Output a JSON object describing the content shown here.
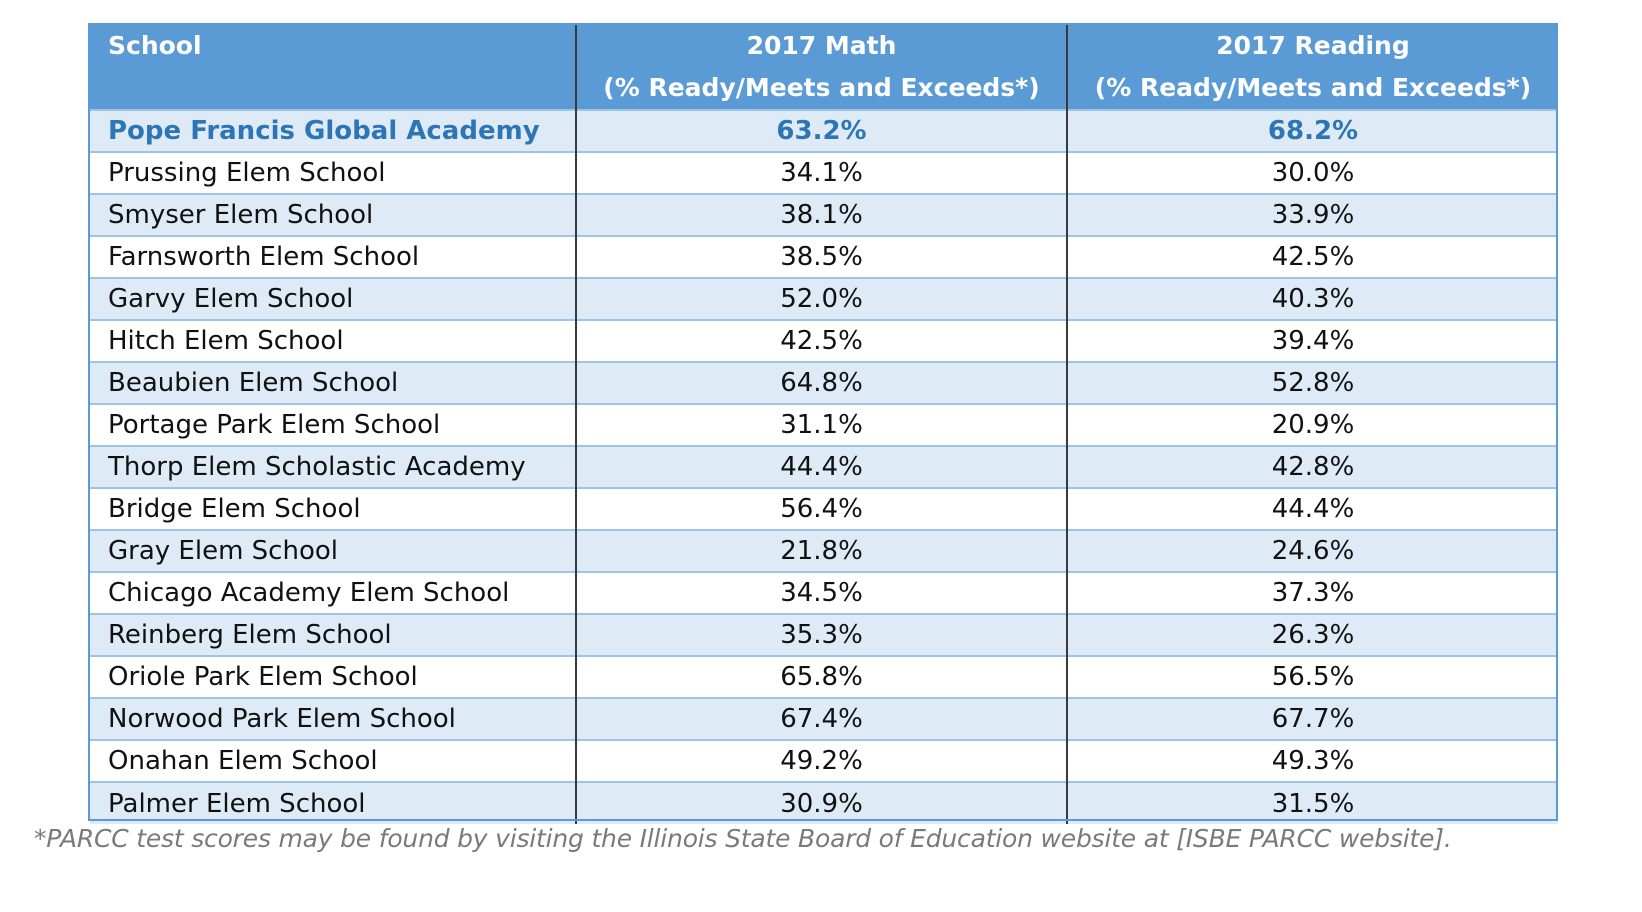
{
  "table": {
    "headers": {
      "school": "School",
      "math_line1": "2017 Math",
      "math_line2": "(% Ready/Meets and Exceeds*)",
      "reading_line1": "2017 Reading",
      "reading_line2": "(% Ready/Meets and Exceeds*)"
    },
    "rows": [
      {
        "school": "Pope Francis Global Academy",
        "math": "63.2%",
        "reading": "68.2%"
      },
      {
        "school": "Prussing Elem School",
        "math": "34.1%",
        "reading": "30.0%"
      },
      {
        "school": "Smyser Elem School",
        "math": "38.1%",
        "reading": "33.9%"
      },
      {
        "school": "Farnsworth Elem School",
        "math": "38.5%",
        "reading": "42.5%"
      },
      {
        "school": "Garvy Elem School",
        "math": "52.0%",
        "reading": "40.3%"
      },
      {
        "school": "Hitch Elem School",
        "math": "42.5%",
        "reading": "39.4%"
      },
      {
        "school": "Beaubien Elem School",
        "math": "64.8%",
        "reading": "52.8%"
      },
      {
        "school": "Portage Park Elem School",
        "math": "31.1%",
        "reading": "20.9%"
      },
      {
        "school": "Thorp Elem Scholastic Academy",
        "math": "44.4%",
        "reading": "42.8%"
      },
      {
        "school": "Bridge Elem School",
        "math": "56.4%",
        "reading": "44.4%"
      },
      {
        "school": "Gray Elem School",
        "math": "21.8%",
        "reading": "24.6%"
      },
      {
        "school": "Chicago Academy Elem School",
        "math": "34.5%",
        "reading": "37.3%"
      },
      {
        "school": "Reinberg Elem School",
        "math": "35.3%",
        "reading": "26.3%"
      },
      {
        "school": "Oriole Park Elem School",
        "math": "65.8%",
        "reading": "56.5%"
      },
      {
        "school": "Norwood Park Elem School",
        "math": "67.4%",
        "reading": "67.7%"
      },
      {
        "school": "Onahan Elem School",
        "math": "49.2%",
        "reading": "49.3%"
      },
      {
        "school": "Palmer Elem School",
        "math": "30.9%",
        "reading": "31.5%"
      }
    ]
  },
  "colors": {
    "header_bg": "#5b9bd5",
    "header_text": "#ffffff",
    "band_light": "#deebf7",
    "highlight_text": "#2e75b6",
    "footnote_text": "#7a7a7a"
  },
  "footnote": "*PARCC test scores may be found by visiting the Illinois State Board of Education website at [ISBE PARCC website]."
}
